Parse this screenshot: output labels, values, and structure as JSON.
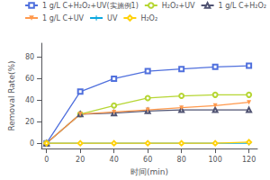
{
  "chart_data": {
    "type": "line",
    "xlabel": "时间(min)",
    "ylabel": "Removal Rate(%)",
    "x": [
      0,
      20,
      40,
      60,
      80,
      100,
      120
    ],
    "series": [
      {
        "name": "1 g/L C+H₂O₂+UV(实施例1)",
        "values": [
          0,
          48,
          60,
          67,
          69,
          71,
          72
        ],
        "marker": "square"
      },
      {
        "name": "H₂O₂+UV",
        "values": [
          0,
          27,
          35,
          42,
          44,
          45,
          45
        ],
        "marker": "circle"
      },
      {
        "name": "1 g/L C+H₂O₂",
        "values": [
          0,
          27,
          28,
          30,
          31,
          31,
          31
        ],
        "marker": "triangle-up"
      },
      {
        "name": "1 g/L C+UV",
        "values": [
          0,
          27,
          29,
          31,
          33,
          35,
          38
        ],
        "marker": "triangle-down"
      },
      {
        "name": "UV",
        "values": [
          0,
          0,
          0,
          0,
          0,
          0,
          0
        ],
        "marker": "plus"
      },
      {
        "name": "H₂O₂",
        "values": [
          0,
          0,
          0,
          0,
          0,
          0,
          1
        ],
        "marker": "diamond"
      }
    ],
    "xlim": [
      -3,
      125
    ],
    "ylim": [
      -5,
      93
    ],
    "xticks": [
      0,
      20,
      40,
      60,
      80,
      100,
      120
    ],
    "yticks": [
      0,
      20,
      40,
      60,
      80
    ],
    "grid": false,
    "legend": "upper right"
  }
}
